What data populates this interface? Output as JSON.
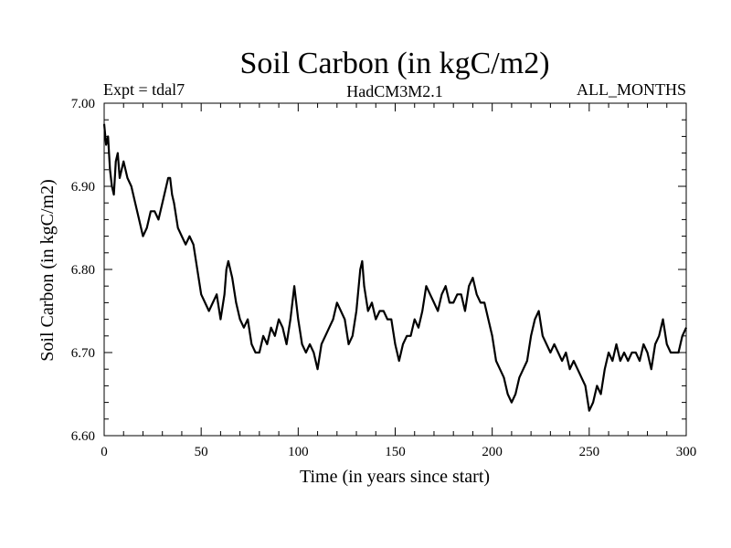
{
  "chart_data": {
    "type": "line",
    "title": "Soil Carbon (in kgC/m2)",
    "subtitle_left": "Expt = tdal7",
    "subtitle_center": "HadCM3M2.1",
    "subtitle_right": "ALL_MONTHS",
    "xlabel": "Time (in years since start)",
    "ylabel": "Soil Carbon (in kgC/m2)",
    "xlim": [
      0,
      300
    ],
    "ylim": [
      6.6,
      7.0
    ],
    "x_ticks": [
      0,
      50,
      100,
      150,
      200,
      250,
      300
    ],
    "y_ticks": [
      "6.60",
      "6.70",
      "6.80",
      "6.90",
      "7.00"
    ],
    "grid": false,
    "series": [
      {
        "color": "#000000",
        "x": [
          0,
          1,
          2,
          3,
          4,
          5,
          6,
          7,
          8,
          9,
          10,
          12,
          14,
          16,
          18,
          20,
          22,
          24,
          26,
          28,
          30,
          32,
          33,
          34,
          35,
          36,
          38,
          40,
          42,
          44,
          46,
          48,
          50,
          52,
          54,
          56,
          58,
          60,
          62,
          63,
          64,
          66,
          68,
          70,
          72,
          74,
          76,
          78,
          80,
          82,
          84,
          86,
          88,
          90,
          92,
          94,
          96,
          98,
          100,
          102,
          104,
          106,
          108,
          110,
          112,
          114,
          116,
          118,
          120,
          122,
          124,
          126,
          128,
          130,
          132,
          133,
          134,
          136,
          138,
          140,
          142,
          144,
          146,
          148,
          150,
          152,
          154,
          156,
          158,
          160,
          162,
          164,
          166,
          168,
          170,
          172,
          174,
          176,
          178,
          180,
          182,
          184,
          186,
          188,
          190,
          192,
          194,
          196,
          198,
          200,
          202,
          204,
          206,
          208,
          210,
          212,
          214,
          216,
          218,
          220,
          222,
          224,
          226,
          228,
          230,
          232,
          234,
          236,
          238,
          240,
          242,
          244,
          246,
          248,
          250,
          252,
          254,
          256,
          258,
          260,
          262,
          264,
          266,
          268,
          270,
          272,
          274,
          276,
          278,
          280,
          282,
          284,
          286,
          288,
          290,
          292,
          294,
          296,
          298,
          300
        ],
        "y": [
          6.975,
          6.95,
          6.96,
          6.92,
          6.9,
          6.89,
          6.93,
          6.94,
          6.91,
          6.92,
          6.93,
          6.91,
          6.9,
          6.88,
          6.86,
          6.84,
          6.85,
          6.87,
          6.87,
          6.86,
          6.88,
          6.9,
          6.91,
          6.91,
          6.89,
          6.88,
          6.85,
          6.84,
          6.83,
          6.84,
          6.83,
          6.8,
          6.77,
          6.76,
          6.75,
          6.76,
          6.77,
          6.74,
          6.77,
          6.8,
          6.81,
          6.79,
          6.76,
          6.74,
          6.73,
          6.74,
          6.71,
          6.7,
          6.7,
          6.72,
          6.71,
          6.73,
          6.72,
          6.74,
          6.73,
          6.71,
          6.74,
          6.78,
          6.74,
          6.71,
          6.7,
          6.71,
          6.7,
          6.68,
          6.71,
          6.72,
          6.73,
          6.74,
          6.76,
          6.75,
          6.74,
          6.71,
          6.72,
          6.75,
          6.8,
          6.81,
          6.78,
          6.75,
          6.76,
          6.74,
          6.75,
          6.75,
          6.74,
          6.74,
          6.71,
          6.69,
          6.71,
          6.72,
          6.72,
          6.74,
          6.73,
          6.75,
          6.78,
          6.77,
          6.76,
          6.75,
          6.77,
          6.78,
          6.76,
          6.76,
          6.77,
          6.77,
          6.75,
          6.78,
          6.79,
          6.77,
          6.76,
          6.76,
          6.74,
          6.72,
          6.69,
          6.68,
          6.67,
          6.65,
          6.64,
          6.65,
          6.67,
          6.68,
          6.69,
          6.72,
          6.74,
          6.75,
          6.72,
          6.71,
          6.7,
          6.71,
          6.7,
          6.69,
          6.7,
          6.68,
          6.69,
          6.68,
          6.67,
          6.66,
          6.63,
          6.64,
          6.66,
          6.65,
          6.68,
          6.7,
          6.69,
          6.71,
          6.69,
          6.7,
          6.69,
          6.7,
          6.7,
          6.69,
          6.71,
          6.7,
          6.68,
          6.71,
          6.72,
          6.74,
          6.71,
          6.7,
          6.7,
          6.7,
          6.72,
          6.73
        ]
      }
    ]
  }
}
